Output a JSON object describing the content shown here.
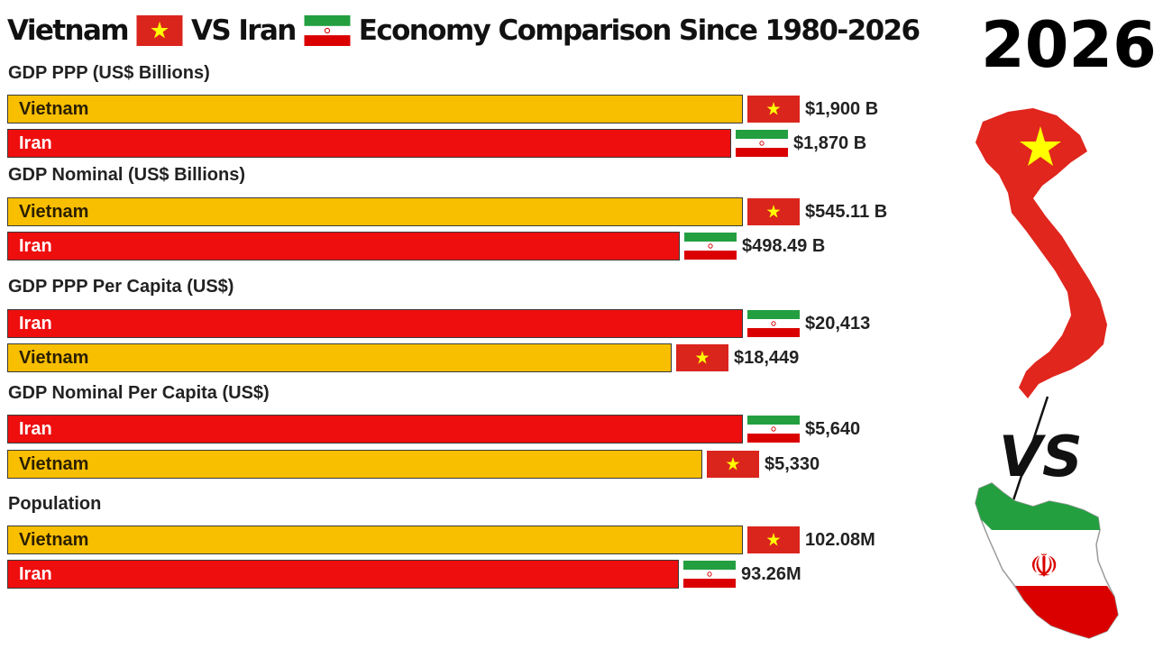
{
  "header": {
    "title_part1": "Vietnam",
    "title_part2": "VS Iran",
    "title_part3": "Economy Comparison Since 1980-2026",
    "year": "2026"
  },
  "colors": {
    "vietnam_bar": "#f8be00",
    "iran_bar": "#ee0e0e",
    "flag_vietnam_red": "#da251d",
    "flag_vietnam_star": "#ffff00",
    "flag_iran_green": "#239f40",
    "flag_iran_red": "#da0000"
  },
  "icons": {
    "vietnam_flag": "vietnam-flag-icon",
    "iran_flag": "iran-flag-icon",
    "vietnam_map": "vietnam-map-icon",
    "iran_map": "iran-map-icon",
    "vs_mark": "vs-icon"
  },
  "vs_text": "VS",
  "chart_data": {
    "type": "bar",
    "orientation": "horizontal",
    "legend": "none",
    "grid": false,
    "panels": [
      {
        "title": "GDP PPP (US$ Billions)",
        "bars": [
          {
            "country": "Vietnam",
            "value": 1900,
            "label": "$1,900 B"
          },
          {
            "country": "Iran",
            "value": 1870,
            "label": "$1,870 B"
          }
        ]
      },
      {
        "title": "GDP Nominal (US$ Billions)",
        "bars": [
          {
            "country": "Vietnam",
            "value": 545.11,
            "label": "$545.11 B"
          },
          {
            "country": "Iran",
            "value": 498.49,
            "label": "$498.49 B"
          }
        ]
      },
      {
        "title": "GDP PPP Per Capita (US$)",
        "bars": [
          {
            "country": "Iran",
            "value": 20413,
            "label": "$20,413"
          },
          {
            "country": "Vietnam",
            "value": 18449,
            "label": "$18,449"
          }
        ]
      },
      {
        "title": "GDP Nominal Per Capita (US$)",
        "bars": [
          {
            "country": "Iran",
            "value": 5640,
            "label": "$5,640"
          },
          {
            "country": "Vietnam",
            "value": 5330,
            "label": "$5,330"
          }
        ]
      },
      {
        "title": "Population",
        "bars": [
          {
            "country": "Vietnam",
            "value": 102.08,
            "label": "102.08M"
          },
          {
            "country": "Iran",
            "value": 93.26,
            "label": "93.26M"
          }
        ]
      }
    ]
  }
}
